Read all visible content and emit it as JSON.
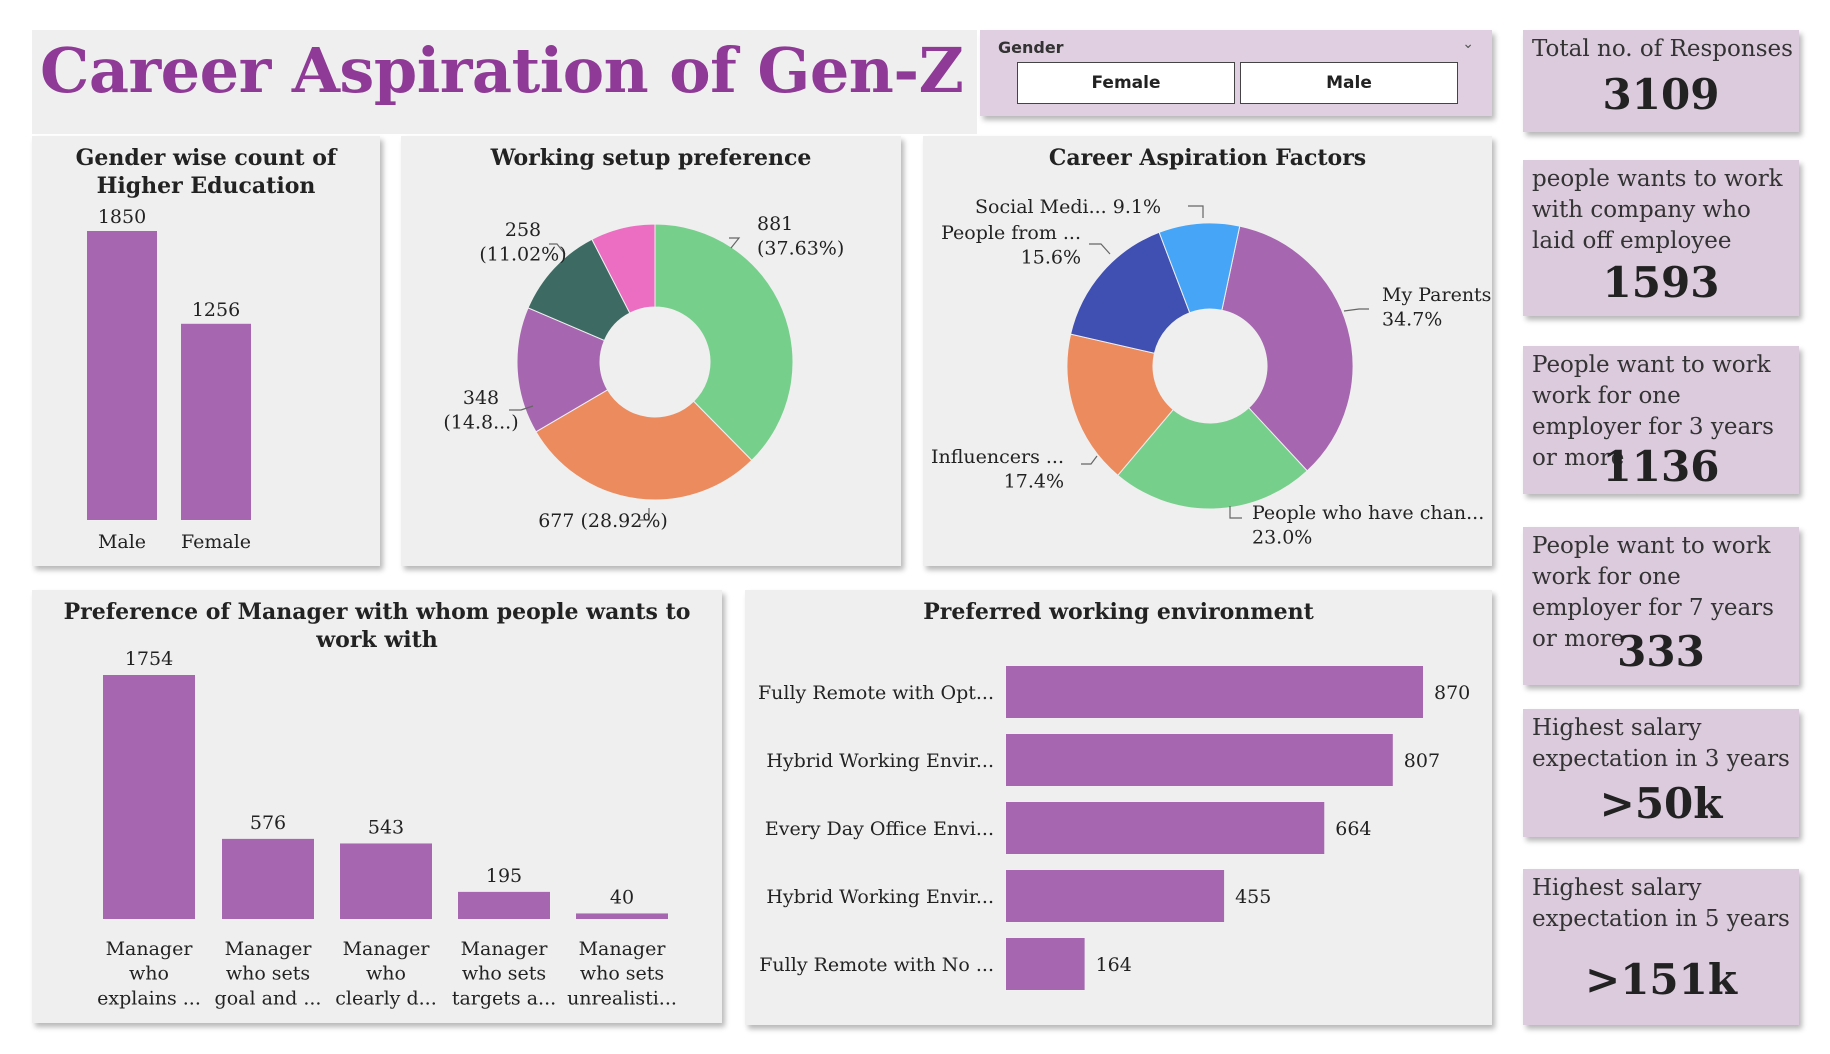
{
  "title": "Career Aspiration of Gen-Z",
  "slicer": {
    "label": "Gender",
    "options": [
      "Female",
      "Male"
    ]
  },
  "kpis": [
    {
      "label": "Total no. of Responses",
      "value": "3109"
    },
    {
      "label": "people wants to work with company who laid off employee",
      "value": "1593"
    },
    {
      "label": "People want to work work for one employer for 3 years or more",
      "value": "1136"
    },
    {
      "label": "People want to work work for one employer for 7 years or more",
      "value": "333"
    },
    {
      "label": "Highest salary expectation in 3 years",
      "value": ">50k"
    },
    {
      "label": "Highest salary expectation in 5 years",
      "value": ">151k"
    }
  ],
  "colors": {
    "bar": "#a666b0",
    "title": "#8e3a96",
    "kpi_bg": "#dccbdd"
  },
  "chart_data": [
    {
      "id": "education",
      "type": "bar",
      "title": "Gender wise count of Higher Education",
      "categories": [
        "Male",
        "Female"
      ],
      "values": [
        1850,
        1256
      ],
      "labels": [
        "1850",
        "1256"
      ]
    },
    {
      "id": "working-setup",
      "type": "pie",
      "title": "Working setup preference",
      "values": [
        881,
        677,
        348,
        258,
        177
      ],
      "labels": [
        "881\n(37.63%)",
        "677 (28.92%)",
        "348\n(14.8...)",
        "258\n(11.02%)",
        ""
      ],
      "colors": [
        "#77cf8c",
        "#ec8b5e",
        "#a666b0",
        "#3d6b63",
        "#ec6ec2"
      ]
    },
    {
      "id": "aspiration-factors",
      "type": "pie",
      "title": "Career Aspiration Factors",
      "values": [
        34.7,
        23.0,
        17.4,
        15.6,
        9.1
      ],
      "labels": [
        "My Parents\n34.7%",
        "People who have chan...\n23.0%",
        "Influencers ...\n17.4%",
        "People from ...\n15.6%",
        "Social Medi... 9.1%"
      ],
      "colors": [
        "#a666b0",
        "#77cf8c",
        "#ec8b5e",
        "#3f4fb2",
        "#46a5f7"
      ]
    },
    {
      "id": "manager-preference",
      "type": "bar",
      "title": "Preference of Manager with whom people wants to work with",
      "categories": [
        "Manager\nwho\nexplains ...",
        "Manager\nwho sets\ngoal and ...",
        "Manager\nwho\nclearly d...",
        "Manager\nwho sets\ntargets a...",
        "Manager\nwho sets\nunrealisti..."
      ],
      "values": [
        1754,
        576,
        543,
        195,
        40
      ],
      "labels": [
        "1754",
        "576",
        "543",
        "195",
        "40"
      ]
    },
    {
      "id": "working-environment",
      "type": "bar",
      "orientation": "horizontal",
      "title": "Preferred working environment",
      "categories": [
        "Fully Remote with Opt...",
        "Hybrid Working Envir...",
        "Every Day Office Envi...",
        "Hybrid Working Envir...",
        "Fully Remote with No ..."
      ],
      "values": [
        870,
        807,
        664,
        455,
        164
      ],
      "labels": [
        "870",
        "807",
        "664",
        "455",
        "164"
      ]
    }
  ]
}
